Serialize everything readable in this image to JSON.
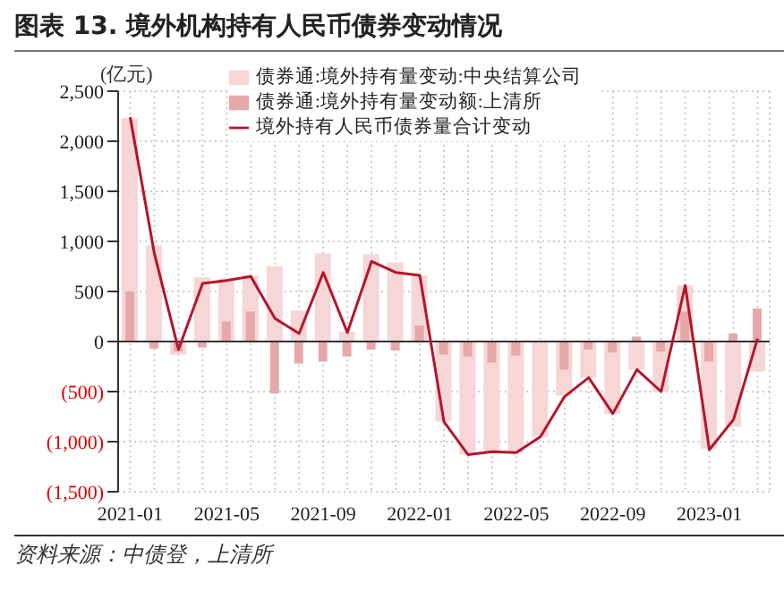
{
  "chart_data": {
    "type": "bar",
    "title": "图表 13.  境外机构持有人民币债券变动情况",
    "ylabel": "(亿元)",
    "annotations": [
      "资料来源：中债登，上清所"
    ],
    "categories": [
      "2021-01",
      null,
      null,
      null,
      "2021-05",
      null,
      null,
      null,
      "2021-09",
      null,
      null,
      null,
      "2022-01",
      null,
      null,
      null,
      "2022-05",
      null,
      null,
      null,
      "2022-09",
      null,
      null,
      null,
      "2023-01",
      null,
      null
    ],
    "series": [
      {
        "name": "债券通:境外持有量变动:中央结算公司",
        "color": "#f6d6d6",
        "values": [
          2230,
          960,
          -130,
          640,
          630,
          660,
          750,
          310,
          880,
          100,
          870,
          790,
          660,
          -800,
          -1130,
          -1100,
          -1110,
          -950,
          -540,
          -360,
          -720,
          -280,
          -500,
          560,
          -1070,
          -850,
          -300
        ]
      },
      {
        "name": "债券通:境外持有量变动额:上清所",
        "color": "#e6a8a8",
        "values": [
          500,
          -70,
          -100,
          -60,
          200,
          300,
          -520,
          -220,
          -200,
          -150,
          -80,
          -90,
          160,
          -130,
          -150,
          -210,
          -140,
          null,
          -280,
          -80,
          -110,
          50,
          -100,
          300,
          -200,
          80,
          330
        ]
      },
      {
        "name": "境外持有人民币债券量合计变动",
        "type": "line",
        "color": "#b5152b",
        "values": [
          2240,
          880,
          -80,
          580,
          610,
          650,
          230,
          80,
          690,
          90,
          800,
          690,
          660,
          -800,
          -1130,
          -1100,
          -1110,
          -950,
          -550,
          -360,
          -720,
          -280,
          -500,
          560,
          -1080,
          -780,
          30
        ]
      }
    ],
    "ylim": [
      -1500,
      2500
    ],
    "yticks": [
      {
        "value": -1500,
        "label": "(1,500)"
      },
      {
        "value": -1000,
        "label": "(1,000)"
      },
      {
        "value": -500,
        "label": "(500)"
      },
      0,
      {
        "value": 500,
        "label": "500"
      },
      {
        "value": 1000,
        "label": "1,000"
      },
      {
        "value": 1500,
        "label": "1,500"
      },
      {
        "value": 2000,
        "label": "2,000"
      },
      {
        "value": 2500,
        "label": "2,500"
      }
    ],
    "grid": true,
    "legend": "top",
    "marker": "none",
    "line_style": "solid"
  }
}
